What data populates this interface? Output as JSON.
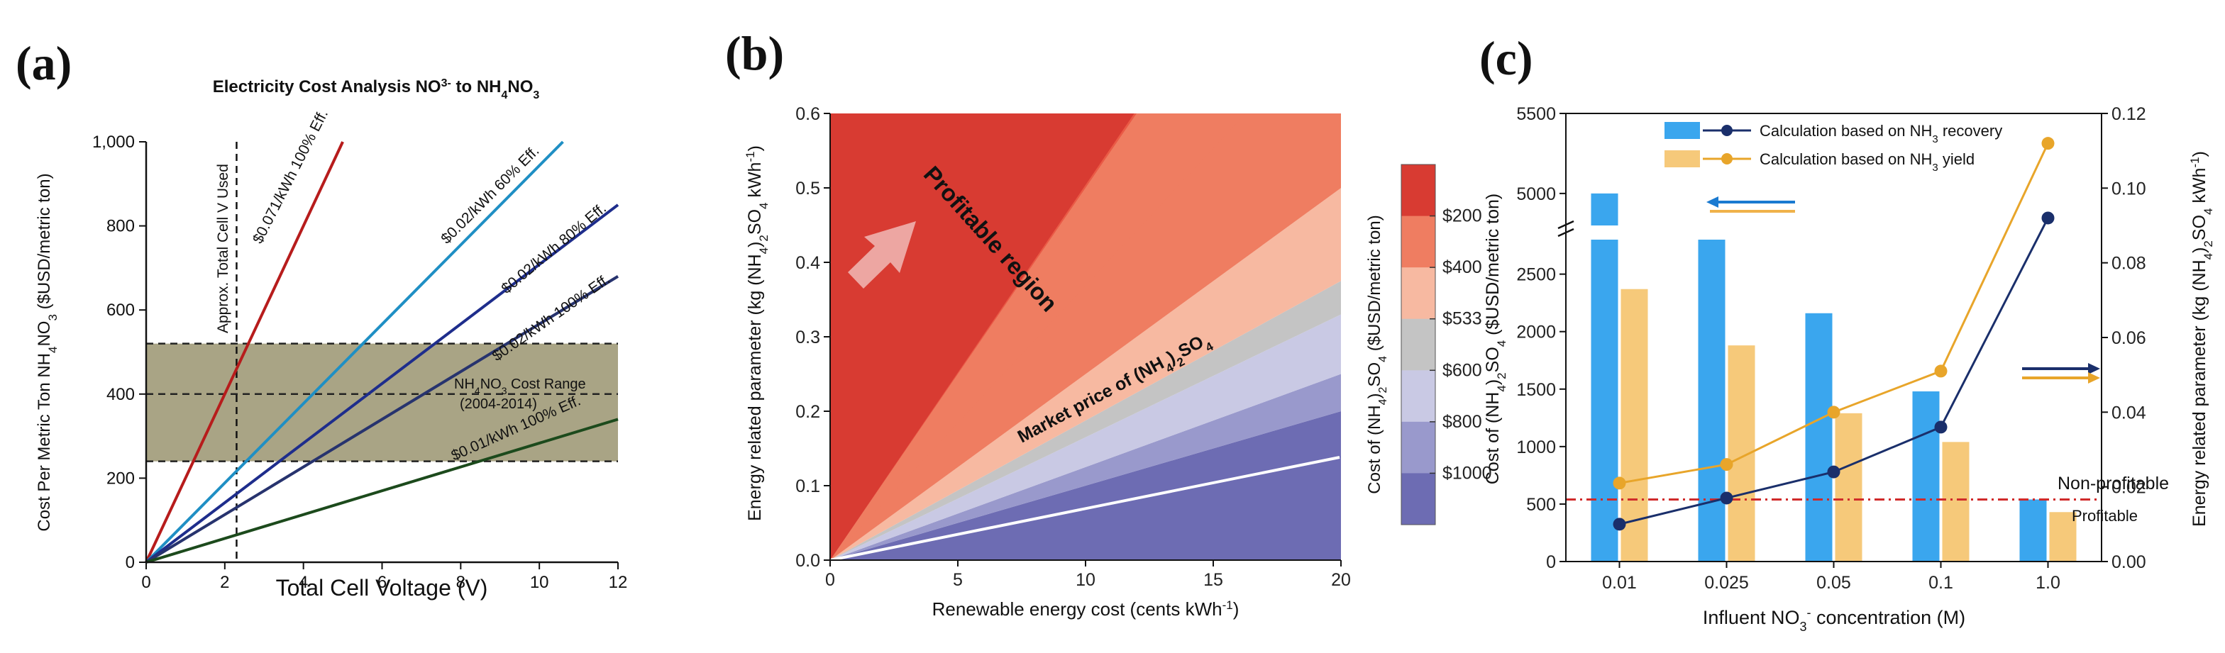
{
  "colors": {
    "red_line": "#b71c1c",
    "light_blue_line": "#1f8fc4",
    "blue_line": "#1e2d8c",
    "navy_line": "#27336e",
    "green_line": "#1c4a1c",
    "band_fill": "#9a9470",
    "bar_blue": "#3aa6ee",
    "bar_orange": "#f6c97a",
    "line_navy": "#1a2f6b",
    "line_orange": "#e8a52a",
    "profit_line": "#d02a2a"
  },
  "panels": {
    "a": {
      "label": "(a)",
      "title_pre": "Electricity Cost Analysis NO",
      "title_sup": "3",
      "title_sup2": "-",
      "title_post": " to NH",
      "title_sub1": "4",
      "title_mid": "NO",
      "title_sub2": "3"
    },
    "b": {
      "label": "(b)"
    },
    "c": {
      "label": "(c)"
    }
  },
  "chart_data": [
    {
      "id": "a",
      "type": "line",
      "title": "Electricity Cost Analysis NO3- to NH4NO3",
      "xlabel": "Total Cell Voltage (V)",
      "ylabel": "Cost Per Metric Ton NH4NO3 ($USD/metric ton)",
      "xlim": [
        0,
        12
      ],
      "ylim": [
        0,
        1000
      ],
      "x_ticks": [
        "0",
        "2",
        "4",
        "6",
        "8",
        "10",
        "12"
      ],
      "y_ticks": [
        "0",
        "200",
        "400",
        "600",
        "800",
        "1,000"
      ],
      "series": [
        {
          "name": "$0.071/kWh 100% Eff.",
          "color": "#b71c1c",
          "x": [
            0,
            5.0
          ],
          "y": [
            0,
            1000
          ]
        },
        {
          "name": "$0.02/kWh 60% Eff.",
          "color": "#1f8fc4",
          "x": [
            0,
            10.6
          ],
          "y": [
            0,
            1000
          ]
        },
        {
          "name": "$0.02/kWh 80% Eff.",
          "color": "#1e2d8c",
          "x": [
            0,
            12
          ],
          "y": [
            0,
            850
          ]
        },
        {
          "name": "$0.02/kWh 100% Eff.",
          "color": "#27336e",
          "x": [
            0,
            12
          ],
          "y": [
            0,
            680
          ]
        },
        {
          "name": "$0.01/kWh 100% Eff.",
          "color": "#1c4a1c",
          "x": [
            0,
            12
          ],
          "y": [
            0,
            340
          ]
        }
      ],
      "cost_range": {
        "label_line1": "NH4NO3 Cost Range",
        "label_line2": "(2004-2014)",
        "low": 240,
        "high": 520,
        "mid": 400
      },
      "vline": {
        "x": 2.3,
        "label": "Approx. Total Cell V Used"
      },
      "series_labels": {
        "s1": "$0.071/kWh 100% Eff.",
        "s2": "$0.02/kWh 60% Eff.",
        "s3": "$0.02/kWh 80% Eff.",
        "s4": "$0.02/kWh 100% Eff.",
        "s5": "$0.01/kWh 100% Eff."
      },
      "texts": {
        "ylabel_pre": "Cost Per Metric Ton NH",
        "ylabel_sub1": "4",
        "ylabel_mid": "NO",
        "ylabel_sub2": "3",
        "ylabel_post": " ($USD/metric ton)",
        "range_pre": "NH",
        "range_sub1": "4",
        "range_mid": "NO",
        "range_sub2": "3",
        "range_post": " Cost Range"
      }
    },
    {
      "id": "b",
      "type": "area",
      "xlabel_pre": "Renewable energy cost (cents kWh",
      "xlabel_sup": "-1",
      "xlabel_post": ")",
      "ylabel_pre": "Energy related parameter (kg (NH",
      "ylabel_sub1": "4",
      "ylabel_mid": ")",
      "ylabel_sub2": "2",
      "ylabel_mid2": "SO",
      "ylabel_sub3": "4",
      "ylabel_post": " kWh",
      "ylabel_sup": "-1",
      "ylabel_end": ")",
      "xlim": [
        0,
        20
      ],
      "ylim": [
        0,
        0.6
      ],
      "x_ticks": [
        "0",
        "5",
        "10",
        "15",
        "20"
      ],
      "y_ticks": [
        "0.0",
        "0.1",
        "0.2",
        "0.3",
        "0.4",
        "0.5",
        "0.6"
      ],
      "boundaries_at_x20": [
        0.2,
        0.25,
        0.33,
        0.375,
        0.5,
        1.0
      ],
      "band_colors": [
        "#6d6cb3",
        "#9999cc",
        "#c9c9e4",
        "#c4c4c4",
        "#f7b9a1",
        "#ef7d61",
        "#d83b32"
      ],
      "colorbar": {
        "label_pre": "Cost of (NH",
        "label_sub1": "4",
        "label_mid": ")",
        "label_sub2": "2",
        "label_mid2": "SO",
        "label_sub3": "4",
        "label_post": " ($USD/metric ton)",
        "ticks": [
          "$200",
          "$400",
          "$533",
          "$600",
          "$800",
          "$1000"
        ],
        "colors": [
          "#d83b32",
          "#ef7d61",
          "#f7b9a1",
          "#c4c4c4",
          "#c9c9e4",
          "#9999cc",
          "#6d6cb3"
        ]
      },
      "annotations": {
        "profitable": "Profitable region",
        "market_pre": "Market price of (NH",
        "market_sub1": "4",
        "market_mid": ")",
        "market_sub2": "2",
        "market_mid2": "SO",
        "market_sub3": "4"
      }
    },
    {
      "id": "c",
      "type": "bar",
      "xlabel_pre": "Influent NO",
      "xlabel_sub": "3",
      "xlabel_sup": "-",
      "xlabel_post": " concentration (M)",
      "categories": [
        "0.01",
        "0.025",
        "0.05",
        "0.1",
        "1.0"
      ],
      "series": [
        {
          "name": "Calculation based on NH3 recovery",
          "type": "bar",
          "color": "#3aa6ee",
          "values": [
            5000,
            2900,
            2160,
            1480,
            540
          ]
        },
        {
          "name": "Calculation based on NH3 yield",
          "type": "bar",
          "color": "#f6c97a",
          "values": [
            2370,
            1880,
            1290,
            1040,
            430
          ]
        },
        {
          "name": "Calculation based on NH3 recovery (line)",
          "type": "line",
          "axis": "right",
          "color": "#1a2f6b",
          "values": [
            0.01,
            0.017,
            0.024,
            0.036,
            0.092
          ]
        },
        {
          "name": "Calculation based on NH3 yield (line)",
          "type": "line",
          "axis": "right",
          "color": "#e8a52a",
          "values": [
            0.021,
            0.026,
            0.04,
            0.051,
            0.112
          ]
        }
      ],
      "legend": {
        "l1_pre": "Calculation based on NH",
        "l1_sub": "3",
        "l1_post": " recovery",
        "l2_pre": "Calculation based on NH",
        "l2_sub": "3",
        "l2_post": " yield"
      },
      "left_axis": {
        "label_pre": "Cost of (NH",
        "label_sub1": "4",
        "label_mid": ")",
        "label_sub2": "2",
        "label_mid2": "SO",
        "label_sub3": "4",
        "label_post": " ($USD/metric ton)",
        "lower_range": [
          0,
          2800
        ],
        "upper_range": [
          4800,
          5500
        ],
        "axis_break": true,
        "ticks_lower": [
          "0",
          "500",
          "1000",
          "1500",
          "2000",
          "2500"
        ],
        "ticks_upper": [
          "5000",
          "5500"
        ]
      },
      "right_axis": {
        "label_pre": "Energy related parameter (kg (NH",
        "label_sub1": "4",
        "label_mid": ")",
        "label_sub2": "2",
        "label_mid2": "SO",
        "label_sub3": "4",
        "label_post": " kWh",
        "label_sup": "-1",
        "label_end": ")",
        "range": [
          0,
          0.12
        ],
        "ticks": [
          "0.00",
          "0.02",
          "0.04",
          "0.06",
          "0.08",
          "0.10",
          "0.12"
        ]
      },
      "threshold": {
        "value": 540,
        "above_label": "Non-profitable",
        "below_label": "Profitable"
      }
    }
  ]
}
